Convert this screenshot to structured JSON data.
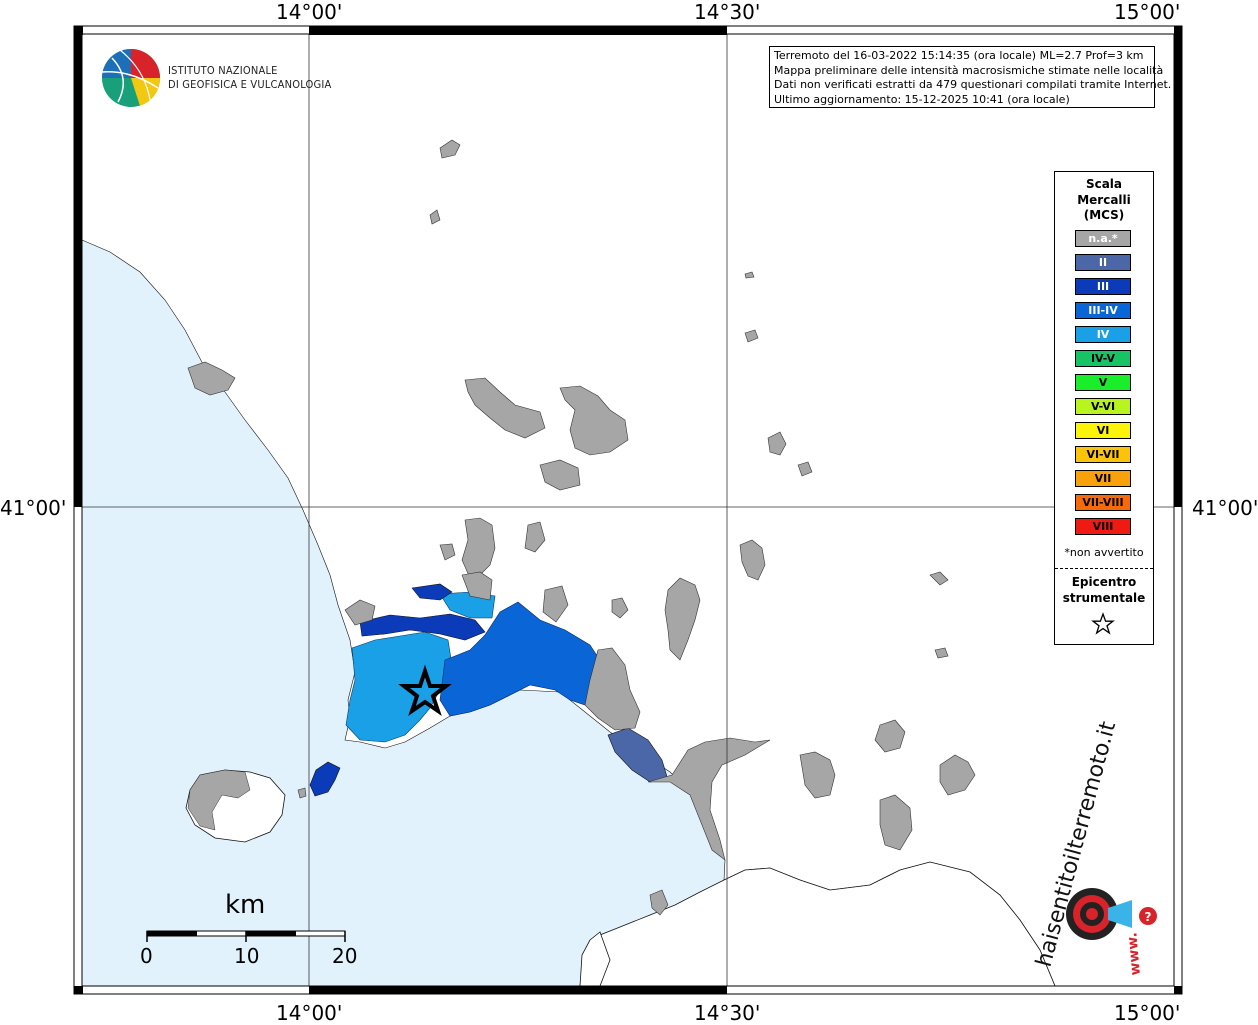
{
  "coords": {
    "top": [
      "14°00'",
      "14°30'",
      "15°00'"
    ],
    "bottom": [
      "14°00'",
      "14°30'",
      "15°00'"
    ],
    "left": "41°00'",
    "right": "41°00'"
  },
  "logo": {
    "line1": "ISTITUTO NAZIONALE",
    "line2": "DI GEOFISICA E VULCANOLOGIA"
  },
  "info": {
    "line1": "Terremoto del 16-03-2022 15:14:35 (ora locale) ML=2.7 Prof=3 km",
    "line2": "Mappa preliminare delle intensità macrosismiche stimate nelle località",
    "line3": "Dati non verificati estratti da 479 questionari compilati tramite Internet.",
    "line4": "Ultimo aggiornamento: 15-12-2025 10:41 (ora locale)"
  },
  "legend": {
    "title1": "Scala",
    "title2": "Mercalli",
    "title3": "(MCS)",
    "items": [
      {
        "label": "n.a.*",
        "color": "#a6a6a6",
        "text_color": "#ffffff"
      },
      {
        "label": "II",
        "color": "#4b67a8",
        "text_color": "#ffffff"
      },
      {
        "label": "III",
        "color": "#0b3bb8",
        "text_color": "#ffffff"
      },
      {
        "label": "III-IV",
        "color": "#0a66d6",
        "text_color": "#ffffff"
      },
      {
        "label": "IV",
        "color": "#1aa0e6",
        "text_color": "#ffffff"
      },
      {
        "label": "IV-V",
        "color": "#16c466",
        "text_color": "#000000"
      },
      {
        "label": "V",
        "color": "#1aee2a",
        "text_color": "#000000"
      },
      {
        "label": "V-VI",
        "color": "#b8f51e",
        "text_color": "#000000"
      },
      {
        "label": "VI",
        "color": "#fbf40a",
        "text_color": "#000000"
      },
      {
        "label": "VI-VII",
        "color": "#fbc40a",
        "text_color": "#000000"
      },
      {
        "label": "VII",
        "color": "#f9a10a",
        "text_color": "#000000"
      },
      {
        "label": "VII-VIII",
        "color": "#f76a0a",
        "text_color": "#000000"
      },
      {
        "label": "VIII",
        "color": "#ef1a12",
        "text_color": "#000000"
      }
    ],
    "note": "*non avvertito",
    "epicenter1": "Epicentro",
    "epicenter2": "strumentale"
  },
  "scale_bar": {
    "unit": "km",
    "ticks": [
      "0",
      "10",
      "20"
    ]
  },
  "site_logo": {
    "line1": "haisentitoilterremoto.it",
    "line2": "www."
  },
  "colors": {
    "sea": "#e2f2fc",
    "na": "#a6a6a6",
    "ii": "#4b67a8",
    "iii": "#0b3bb8",
    "iii_iv": "#0a66d6",
    "iv": "#1aa0e6"
  }
}
